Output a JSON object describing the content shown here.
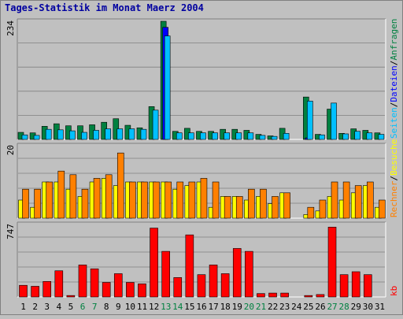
{
  "chart_data": {
    "type": "bar",
    "title": "Tages-Statistik im Monat Maerz 2004",
    "categories": [
      "1",
      "2",
      "3",
      "4",
      "5",
      "6",
      "7",
      "8",
      "9",
      "10",
      "11",
      "12",
      "13",
      "14",
      "15",
      "16",
      "17",
      "18",
      "19",
      "20",
      "21",
      "22",
      "23",
      "24",
      "25",
      "26",
      "27",
      "28",
      "29",
      "30",
      "31"
    ],
    "weekend_days": [
      "6",
      "7",
      "13",
      "14",
      "20",
      "21",
      "27",
      "28"
    ],
    "panels": [
      {
        "id": "requests",
        "scale_label": "234",
        "ymax": 234,
        "series": [
          {
            "name": "Anfragen",
            "color": "#008040",
            "values": [
              14,
              13,
              26,
              31,
              27,
              27,
              29,
              34,
              41,
              28,
              23,
              65,
              234,
              16,
              22,
              16,
              16,
              20,
              20,
              18,
              10,
              7,
              22,
              0,
              84,
              10,
              60,
              12,
              21,
              18,
              13
            ]
          },
          {
            "name": "Dateien",
            "color": "#0000ff",
            "values": [
              0,
              0,
              0,
              0,
              0,
              0,
              0,
              0,
              0,
              0,
              0,
              0,
              222,
              0,
              0,
              0,
              0,
              0,
              0,
              0,
              0,
              0,
              0,
              0,
              3,
              0,
              0,
              0,
              0,
              0,
              0
            ]
          },
          {
            "name": "Seiten",
            "color": "#00c0ff",
            "values": [
              9,
              8,
              20,
              19,
              17,
              14,
              18,
              21,
              21,
              21,
              20,
              58,
              205,
              13,
              13,
              13,
              13,
              13,
              13,
              13,
              8,
              6,
              12,
              0,
              76,
              9,
              72,
              11,
              16,
              13,
              10
            ]
          }
        ]
      },
      {
        "id": "visits",
        "scale_label": "20",
        "ymax": 20,
        "series": [
          {
            "name": "Besuche",
            "color": "#ffff00",
            "values": [
              5,
              3,
              10,
              10,
              8,
              6,
              10,
              11,
              9,
              10,
              10,
              10,
              10,
              8,
              9,
              10,
              3,
              6,
              6,
              5,
              6,
              4,
              7,
              0,
              1,
              2,
              6,
              5,
              7,
              9,
              3
            ]
          },
          {
            "name": "Rechner",
            "color": "#ff8000",
            "values": [
              8,
              8,
              10,
              13,
              12,
              8,
              11,
              12,
              18,
              10,
              10,
              10,
              10,
              10,
              10,
              11,
              10,
              6,
              6,
              8,
              8,
              6,
              7,
              0,
              3,
              5,
              10,
              10,
              9,
              10,
              5
            ]
          }
        ]
      },
      {
        "id": "kb",
        "scale_label": "747",
        "ymax": 747,
        "series": [
          {
            "name": "kb",
            "color": "#ff0000",
            "values": [
              120,
              110,
              160,
              270,
              15,
              330,
              290,
              150,
              240,
              150,
              135,
              710,
              470,
              200,
              640,
              230,
              330,
              240,
              500,
              470,
              35,
              40,
              40,
              0,
              15,
              25,
              720,
              230,
              260,
              230,
              0
            ]
          }
        ]
      }
    ],
    "right_labels": {
      "top": [
        {
          "text": "Anfragen",
          "color": "#008040"
        },
        {
          "text": "Dateien",
          "color": "#0000ff"
        },
        {
          "text": "Seiten",
          "color": "#00c0ff"
        }
      ],
      "middle": [
        {
          "text": "Rechner",
          "color": "#ff8000"
        },
        {
          "text": "Besuche",
          "color": "#ffff00"
        }
      ],
      "bottom": [
        {
          "text": "kb",
          "color": "#ff0000"
        }
      ],
      "separator": "/"
    },
    "colors": {
      "title": "#0000a0",
      "weekday_label": "#000000",
      "weekend_label": "#008040",
      "background": "#c0c0c0"
    }
  }
}
